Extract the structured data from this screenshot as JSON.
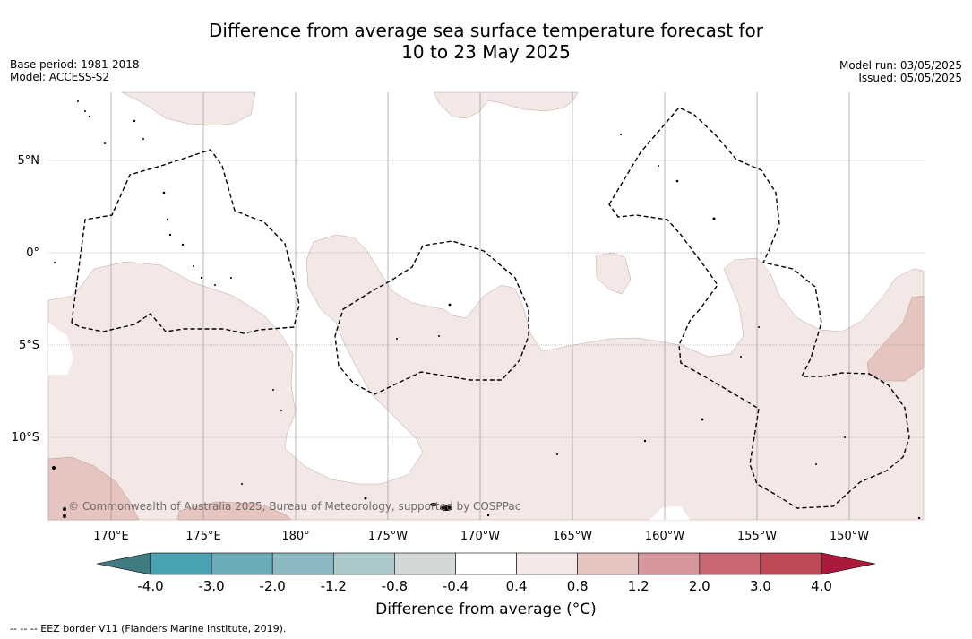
{
  "title": "Difference from average sea surface temperature forecast for\n10 to 23 May 2025",
  "meta_left": {
    "base_period": "Base period: 1981-2018",
    "model": "Model: ACCESS-S2"
  },
  "meta_right": {
    "model_run": "Model run: 03/05/2025",
    "issued": "Issued: 05/05/2025"
  },
  "copyright": "© Commonwealth of Australia 2025, Bureau of Meteorology, supported by COSPPac",
  "footnote": "-- -- -- EEZ border V11 (Flanders Marine Institute, 2019).",
  "map": {
    "lon_ticks": [
      "170°E",
      "175°E",
      "180°",
      "175°W",
      "170°W",
      "165°W",
      "160°W",
      "155°W",
      "150°W"
    ],
    "lat_ticks": [
      "5°N",
      "0°",
      "5°S",
      "10°S"
    ],
    "lon_range": [
      166.7,
      213.9
    ],
    "lat_range": [
      -14.6,
      8.4
    ]
  },
  "colorbar": {
    "label": "Difference from average (°C)",
    "ticks": [
      "-4.0",
      "-3.0",
      "-2.0",
      "-1.2",
      "-0.8",
      "-0.4",
      "0.4",
      "0.8",
      "1.2",
      "2.0",
      "3.0",
      "4.0"
    ],
    "colors": [
      "#3f7b80",
      "#4aa3b3",
      "#6babb8",
      "#8bb8c1",
      "#abc8cb",
      "#d1d6d7",
      "#ffffff",
      "#f4e8e7",
      "#e6c4c0",
      "#d6969b",
      "#c96873",
      "#bf4957",
      "#ab1a3b"
    ]
  },
  "colors": {
    "anomaly_0.4_0.8": "#f4e8e7",
    "anomaly_0.8_1.2": "#e6c4c0",
    "land": "#000000",
    "grid": "#888888"
  }
}
